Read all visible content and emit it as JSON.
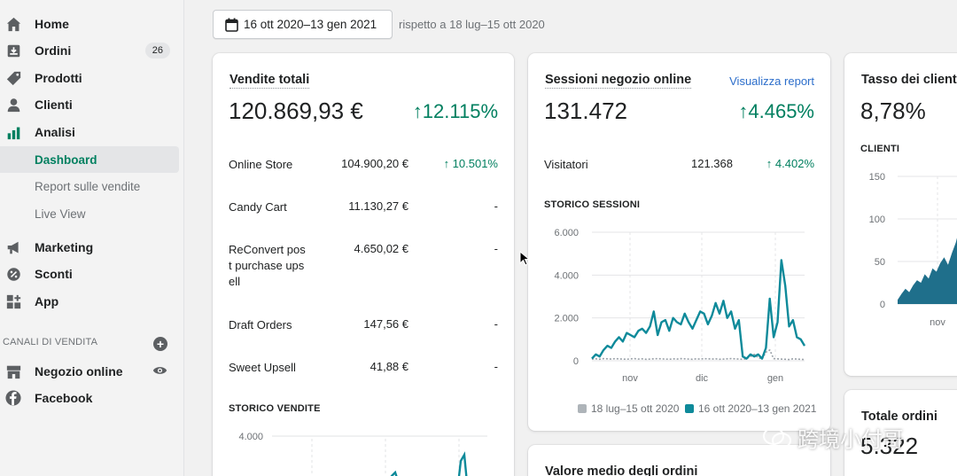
{
  "sidebar": {
    "items": [
      {
        "label": "Home",
        "icon": "home-icon"
      },
      {
        "label": "Ordini",
        "icon": "orders-icon",
        "badge": "26"
      },
      {
        "label": "Prodotti",
        "icon": "tag-icon"
      },
      {
        "label": "Clienti",
        "icon": "person-icon"
      },
      {
        "label": "Analisi",
        "icon": "bar-chart-icon"
      }
    ],
    "sub_items": [
      {
        "label": "Dashboard",
        "active": true
      },
      {
        "label": "Report sulle vendite"
      },
      {
        "label": "Live View"
      }
    ],
    "items2": [
      {
        "label": "Marketing",
        "icon": "megaphone-icon"
      },
      {
        "label": "Sconti",
        "icon": "discount-icon"
      },
      {
        "label": "App",
        "icon": "apps-icon"
      }
    ],
    "channels_heading": "CANALI DI VENDITA",
    "channels": [
      {
        "label": "Negozio online",
        "icon": "store-icon"
      },
      {
        "label": "Facebook",
        "icon": "facebook-icon"
      }
    ]
  },
  "date_range": {
    "label": "16 ott 2020–13 gen 2021",
    "compare": "rispetto a 18 lug–15 ott 2020"
  },
  "sales": {
    "title": "Vendite totali",
    "total": "120.869,93 €",
    "growth": "↑12.115%",
    "rows": [
      {
        "label": "Online Store",
        "value": "104.900,20 €",
        "change": "↑ 10.501%"
      },
      {
        "label": "Candy Cart",
        "value": "11.130,27 €",
        "change": "-"
      },
      {
        "label": "ReConvert pos t purchase ups ell",
        "value": "4.650,02 €",
        "change": "-"
      },
      {
        "label": "Draft Orders",
        "value": "147,56 €",
        "change": "-"
      },
      {
        "label": "Sweet Upsell",
        "value": "41,88 €",
        "change": "-"
      }
    ],
    "history_label": "STORICO VENDITE",
    "history_tick": "4.000"
  },
  "sessions": {
    "title": "Sessioni negozio online",
    "link": "Visualizza report",
    "total": "131.472",
    "growth": "↑4.465%",
    "visitors_label": "Visitatori",
    "visitors_value": "121.368",
    "visitors_change": "↑ 4.402%",
    "history_label": "STORICO SESSIONI",
    "legend_prev": "18 lug–15 ott 2020",
    "legend_curr": "16 ott 2020–13 gen 2021"
  },
  "returning": {
    "title": "Tasso dei client",
    "value": "8,78%",
    "section": "CLIENTI",
    "x_tick": "nov"
  },
  "orders": {
    "title": "Totale ordini",
    "value": "5.322"
  },
  "aov": {
    "title": "Valore medio degli ordini"
  },
  "watermark": "跨境小付哥",
  "colors": {
    "accent": "#008060",
    "series": "#0e8a9a",
    "series_dark": "#1f6f8b",
    "prev": "#aeb4b9"
  },
  "chart_data": [
    {
      "type": "line",
      "title": "STORICO SESSIONI",
      "xlabel": "",
      "ylabel": "",
      "ylim": [
        0,
        6000
      ],
      "y_ticks": [
        "6.000",
        "4.000",
        "2.000",
        "0"
      ],
      "x_ticks": [
        "nov",
        "dic",
        "gen"
      ],
      "grid": true,
      "legend": "bottom",
      "series": [
        {
          "name": "16 ott 2020–13 gen 2021",
          "values": [
            100,
            300,
            200,
            500,
            700,
            600,
            900,
            1100,
            900,
            1300,
            1200,
            1100,
            1400,
            1500,
            1300,
            1600,
            2300,
            1200,
            1800,
            1900,
            1400,
            2000,
            1800,
            1700,
            2200,
            1800,
            1500,
            1900,
            2300,
            2200,
            1700,
            2100,
            2700,
            2200,
            2800,
            2000,
            2300,
            1500,
            1900,
            200,
            100,
            300,
            200,
            300,
            100,
            600,
            2900,
            1100,
            1800,
            4700,
            3500,
            1600,
            1900,
            1100,
            1000,
            700
          ]
        },
        {
          "name": "18 lug–15 ott 2020",
          "values": [
            80,
            90,
            70,
            100,
            90,
            80,
            100,
            90,
            80,
            70,
            90,
            100,
            80,
            90,
            70,
            80,
            90,
            100,
            90,
            80,
            70,
            90,
            80,
            100,
            90,
            80,
            70,
            90,
            80,
            100,
            90,
            80,
            90,
            70,
            80,
            90,
            100,
            90,
            80,
            70,
            90,
            200,
            300,
            150,
            80,
            400,
            500,
            100,
            90,
            80,
            70,
            60,
            90,
            80,
            70,
            60
          ]
        }
      ]
    },
    {
      "type": "area",
      "title": "CLIENTI",
      "y_ticks": [
        "150",
        "100",
        "50",
        "0"
      ],
      "ylim": [
        0,
        150
      ],
      "x_ticks": [
        "nov"
      ],
      "series": [
        {
          "values": [
            5,
            12,
            18,
            14,
            22,
            28,
            25,
            35,
            30,
            42,
            38,
            48,
            55,
            46,
            60,
            72,
            90
          ]
        }
      ]
    },
    {
      "type": "line",
      "title": "STORICO VENDITE",
      "y_ticks": [
        "4.000"
      ],
      "series": [
        {
          "values": []
        }
      ]
    }
  ]
}
